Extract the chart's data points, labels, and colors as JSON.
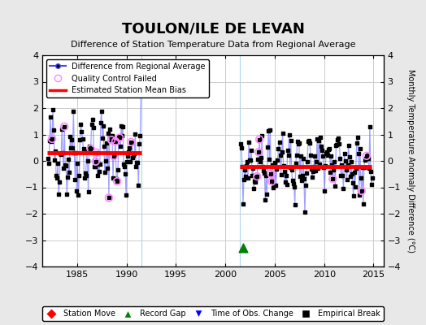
{
  "title": "TOULON/ILE DE LEVAN",
  "subtitle": "Difference of Station Temperature Data from Regional Average",
  "ylabel": "Monthly Temperature Anomaly Difference (°C)",
  "xlim": [
    1981.5,
    2016.0
  ],
  "ylim": [
    -4,
    4
  ],
  "yticks": [
    -4,
    -3,
    -2,
    -1,
    0,
    1,
    2,
    3,
    4
  ],
  "xticks": [
    1985,
    1990,
    1995,
    2000,
    2005,
    2010,
    2015
  ],
  "bias1_y": 0.3,
  "bias1_xstart": 1982.0,
  "bias1_xend": 1991.5,
  "bias2_y": -0.2,
  "bias2_xstart": 2001.5,
  "bias2_xend": 2014.8,
  "gap_start": 1991.5,
  "gap_end": 2001.5,
  "record_gap_x": 2001.8,
  "record_gap_y": -3.3,
  "bg_color": "#e8e8e8",
  "plot_bg_color": "#ffffff",
  "line_color": "#4444ff",
  "line_alpha": 0.5,
  "marker_color": "#000000",
  "qc_fail_color": "#ff88ff",
  "bias_color": "#ff0000",
  "grid_color": "#cccccc",
  "segment1_seed": 42,
  "segment2_seed": 99
}
